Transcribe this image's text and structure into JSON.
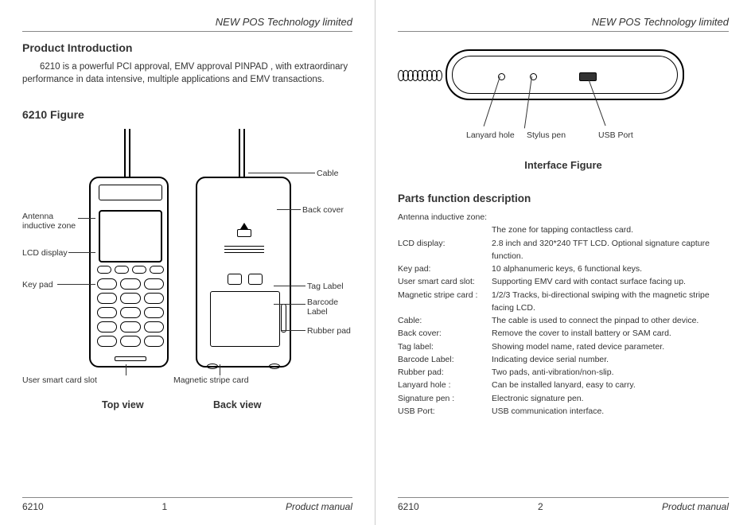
{
  "company": "NEW POS Technology limited",
  "page1": {
    "section_title": "Product Introduction",
    "intro": "6210 is a powerful PCI approval, EMV approval PINPAD , with extraordinary performance in data intensive, multiple  applications and EMV transactions.",
    "figure_title": "6210 Figure",
    "labels": {
      "antenna": "Antenna\ninductive zone",
      "lcd": "LCD display",
      "keypad": "Key pad",
      "smartcard": "User smart card slot",
      "magstripe": "Magnetic stripe card",
      "cable": "Cable",
      "backcover": "Back cover",
      "taglabel": "Tag Label",
      "barcode": "Barcode\nLabel",
      "rubber": "Rubber pad"
    },
    "view_top": "Top view",
    "view_back": "Back view",
    "footer_model": "6210",
    "footer_page": "1",
    "footer_manual": "Product manual"
  },
  "page2": {
    "if_labels": {
      "lanyard": "Lanyard hole",
      "stylus": "Stylus pen",
      "usb": "USB Port"
    },
    "interface_caption": "Interface Figure",
    "parts_title": "Parts function description",
    "parts": [
      {
        "k": "Antenna inductive zone:",
        "v": ""
      },
      {
        "k": "",
        "v": "The zone for tapping contactless card."
      },
      {
        "k": "LCD display:",
        "v": "2.8 inch and  320*240 TFT LCD. Optional signature capture function."
      },
      {
        "k": "Key pad:",
        "v": "10 alphanumeric keys, 6 functional keys."
      },
      {
        "k": "User smart card slot:",
        "v": "Supporting EMV card with contact surface facing up."
      },
      {
        "k": "Magnetic stripe card :",
        "v": "1/2/3 Tracks, bi-directional swiping with the magnetic stripe facing LCD."
      },
      {
        "k": "Cable:",
        "v": "The cable is used to connect the pinpad to other device."
      },
      {
        "k": "Back cover:",
        "v": "Remove the cover to install battery or SAM card."
      },
      {
        "k": "Tag  label:",
        "v": "Showing model name, rated device parameter."
      },
      {
        "k": "Barcode Label:",
        "v": "Indicating device  serial number."
      },
      {
        "k": "Rubber pad:",
        "v": " Two pads, anti-vibration/non-slip."
      },
      {
        "k": "Lanyard hole :",
        "v": "Can be installed lanyard, easy to carry."
      },
      {
        "k": "Signature pen :",
        "v": "Electronic signature pen."
      },
      {
        "k": "USB Port:",
        "v": " USB communication interface."
      }
    ],
    "footer_model": "6210",
    "footer_page": "2",
    "footer_manual": "Product manual"
  }
}
